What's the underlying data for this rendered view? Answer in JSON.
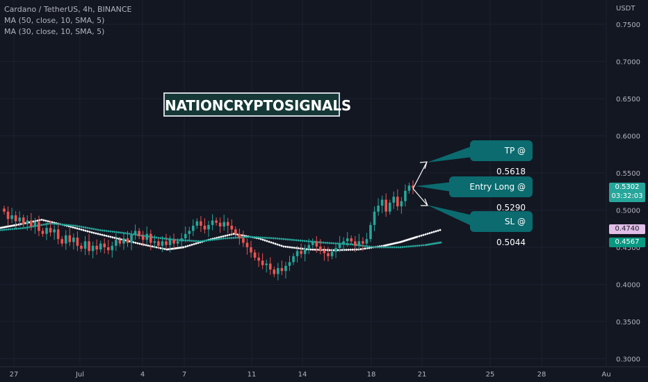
{
  "legend": {
    "symbol": "Cardano / TetherUS, 4h, BINANCE",
    "ma1": "MA (50, close, 10, SMA, 5)",
    "ma2": "MA (30, close, 10, SMA, 5)"
  },
  "brand": "NATIONCRYPTOSIGNALS",
  "callouts": {
    "tp": "TP @ 0.5618",
    "entry": "Entry Long @ 0.5290",
    "sl": "SL @ 0.5044"
  },
  "price_badges": {
    "last_price": "0.5302",
    "countdown": "03:32:03",
    "ma1_value": "0.4740",
    "ma2_value": "0.4567"
  },
  "colors": {
    "background": "#131722",
    "up": "#26a69a",
    "down": "#ef5350",
    "ma_white": "#ffffff",
    "ma_green": "#26a69a",
    "callout": "#0b6b6f",
    "badge_pink": "#e1bee7"
  },
  "chart_data": {
    "type": "candlestick",
    "title": "Cardano / TetherUS, 4h, BINANCE",
    "y_axis_label": "USDT",
    "y_ticks": [
      "0.7500",
      "0.7000",
      "0.6500",
      "0.6000",
      "0.5500",
      "0.5000",
      "0.4500",
      "0.4000",
      "0.3500",
      "0.3000"
    ],
    "ylim": [
      0.29,
      0.78
    ],
    "x_ticks": [
      "27",
      "Jul",
      "4",
      "7",
      "11",
      "14",
      "18",
      "21",
      "25",
      "28",
      "Au"
    ],
    "closes": [
      0.498,
      0.488,
      0.493,
      0.485,
      0.49,
      0.481,
      0.486,
      0.478,
      0.484,
      0.472,
      0.468,
      0.476,
      0.47,
      0.474,
      0.461,
      0.455,
      0.466,
      0.457,
      0.463,
      0.452,
      0.448,
      0.458,
      0.445,
      0.452,
      0.447,
      0.455,
      0.45,
      0.446,
      0.452,
      0.46,
      0.455,
      0.462,
      0.456,
      0.467,
      0.472,
      0.465,
      0.46,
      0.468,
      0.456,
      0.458,
      0.452,
      0.458,
      0.453,
      0.46,
      0.455,
      0.458,
      0.462,
      0.468,
      0.472,
      0.479,
      0.485,
      0.479,
      0.474,
      0.48,
      0.486,
      0.483,
      0.478,
      0.484,
      0.479,
      0.474,
      0.468,
      0.462,
      0.456,
      0.45,
      0.443,
      0.436,
      0.432,
      0.426,
      0.428,
      0.42,
      0.414,
      0.422,
      0.418,
      0.425,
      0.43,
      0.438,
      0.445,
      0.441,
      0.448,
      0.453,
      0.458,
      0.451,
      0.446,
      0.442,
      0.438,
      0.444,
      0.449,
      0.455,
      0.458,
      0.462,
      0.458,
      0.452,
      0.458,
      0.455,
      0.461,
      0.48,
      0.498,
      0.506,
      0.514,
      0.498,
      0.51,
      0.518,
      0.505,
      0.512,
      0.526,
      0.533,
      0.53
    ],
    "ma_white_points": [
      [
        0.0,
        0.476
      ],
      [
        0.1,
        0.48
      ],
      [
        0.25,
        0.487
      ],
      [
        0.4,
        0.479
      ],
      [
        0.55,
        0.47
      ],
      [
        0.7,
        0.462
      ],
      [
        0.85,
        0.454
      ],
      [
        1.0,
        0.447
      ],
      [
        1.1,
        0.45
      ],
      [
        1.25,
        0.46
      ],
      [
        1.4,
        0.468
      ],
      [
        1.55,
        0.462
      ],
      [
        1.7,
        0.451
      ],
      [
        1.85,
        0.447
      ],
      [
        2.0,
        0.446
      ],
      [
        2.15,
        0.447
      ],
      [
        2.3,
        0.452
      ],
      [
        2.4,
        0.457
      ],
      [
        2.5,
        0.464
      ],
      [
        2.65,
        0.474
      ]
    ],
    "ma_green_points": [
      [
        0.0,
        0.473
      ],
      [
        0.15,
        0.476
      ],
      [
        0.3,
        0.482
      ],
      [
        0.45,
        0.479
      ],
      [
        0.6,
        0.473
      ],
      [
        0.75,
        0.469
      ],
      [
        0.9,
        0.464
      ],
      [
        1.05,
        0.46
      ],
      [
        1.2,
        0.458
      ],
      [
        1.35,
        0.462
      ],
      [
        1.5,
        0.464
      ],
      [
        1.65,
        0.462
      ],
      [
        1.8,
        0.459
      ],
      [
        1.95,
        0.456
      ],
      [
        2.1,
        0.454
      ],
      [
        2.25,
        0.45
      ],
      [
        2.4,
        0.45
      ],
      [
        2.55,
        0.453
      ],
      [
        2.65,
        0.4567
      ]
    ],
    "ma_x_range": [
      0,
      2.65
    ]
  }
}
